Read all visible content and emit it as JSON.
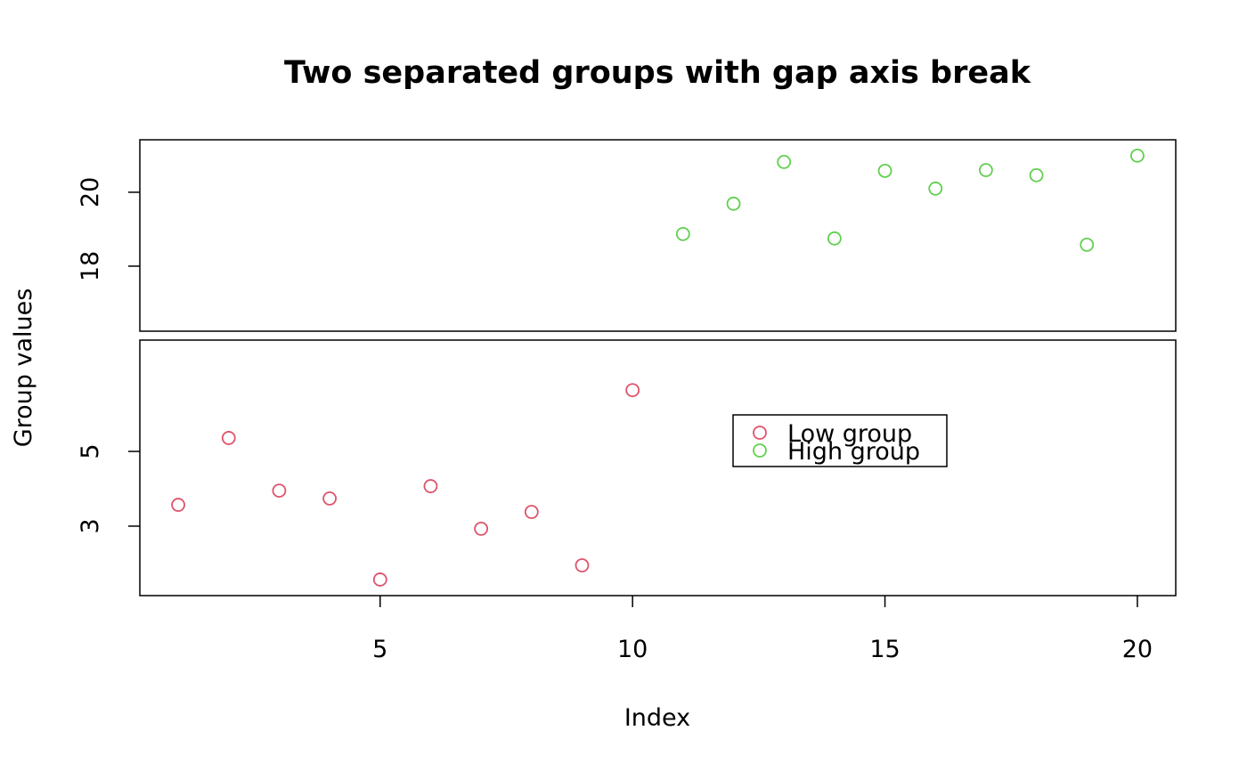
{
  "chart_data": {
    "type": "scatter",
    "title": "Two separated groups with gap axis break",
    "xlabel": "Index",
    "ylabel": "Group values",
    "xlim": [
      0.24,
      20.76
    ],
    "xticks": [
      5,
      10,
      15,
      20
    ],
    "ylim": [
      1.14,
      7.98
    ],
    "yticks": [
      3,
      5
    ],
    "y2lim": [
      16.24,
      21.42
    ],
    "y2ticks": [
      18,
      20
    ],
    "series": [
      {
        "name": "Low group",
        "color": "#DF536B",
        "x": [
          1,
          2,
          3,
          4,
          5,
          6,
          7,
          8,
          9,
          10
        ],
        "values": [
          3.57,
          5.36,
          3.95,
          3.74,
          1.57,
          4.07,
          2.93,
          3.38,
          1.95,
          6.64
        ]
      },
      {
        "name": "High group",
        "color": "#61D04F",
        "axis": "y2",
        "x": [
          11,
          12,
          13,
          14,
          15,
          16,
          17,
          18,
          19,
          20
        ],
        "values": [
          18.87,
          19.69,
          20.82,
          18.75,
          20.58,
          20.1,
          20.6,
          20.46,
          18.58,
          20.99
        ]
      }
    ]
  }
}
